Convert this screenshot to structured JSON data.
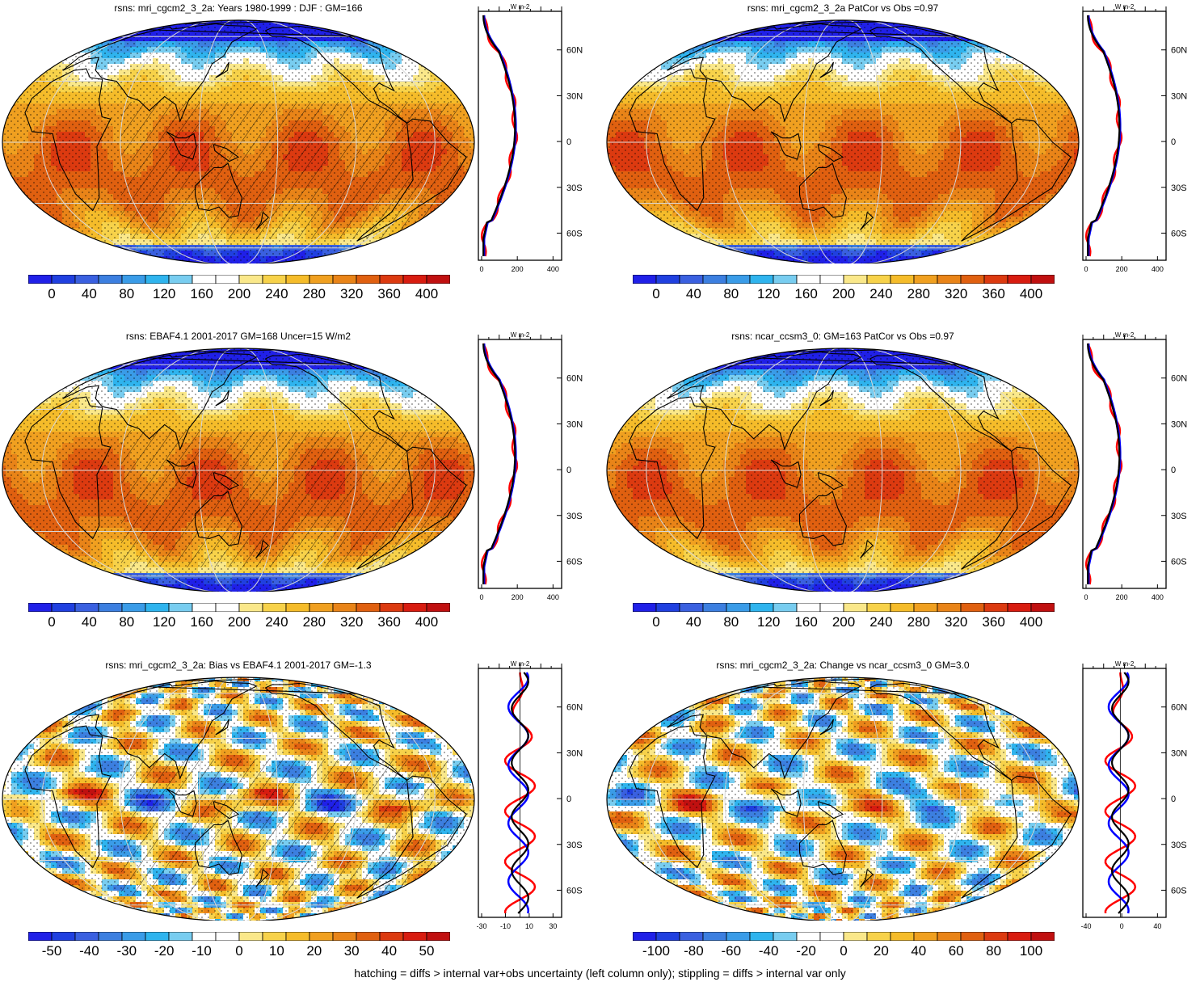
{
  "panels": [
    {
      "title": "rsns: mri_cgcm2_3_2a: Years 1980-1999 : DJF : GM=166",
      "colorbar": {
        "colors": [
          "#2020e8",
          "#2040e0",
          "#3a60e0",
          "#3c7fe0",
          "#3a9ce8",
          "#2fb4ee",
          "#78cdf0",
          "#ffffff",
          "#ffffff",
          "#fae88a",
          "#f7d24a",
          "#f5bc2a",
          "#f0a020",
          "#e98418",
          "#e06010",
          "#dc3a10",
          "#d81c10",
          "#c01010"
        ],
        "labels": [
          "0",
          "40",
          "80",
          "120",
          "160",
          "200",
          "240",
          "280",
          "320",
          "360",
          "400"
        ]
      },
      "profile": {
        "unit": "W m-2",
        "xticks": [
          "0",
          "200",
          "400"
        ],
        "yticks": [
          "60N",
          "30N",
          "0",
          "30S",
          "60S"
        ]
      }
    },
    {
      "title": "rsns: mri_cgcm2_3_2a PatCor vs Obs =0.97",
      "colorbar": {
        "colors": [
          "#2020e8",
          "#2040e0",
          "#3a60e0",
          "#3c7fe0",
          "#3a9ce8",
          "#2fb4ee",
          "#78cdf0",
          "#ffffff",
          "#ffffff",
          "#fae88a",
          "#f7d24a",
          "#f5bc2a",
          "#f0a020",
          "#e98418",
          "#e06010",
          "#dc3a10",
          "#d81c10",
          "#c01010"
        ],
        "labels": [
          "0",
          "40",
          "80",
          "120",
          "160",
          "200",
          "240",
          "280",
          "320",
          "360",
          "400"
        ]
      },
      "profile": {
        "unit": "W m-2",
        "xticks": [
          "0",
          "200",
          "400"
        ],
        "yticks": [
          "60N",
          "30N",
          "0",
          "30S",
          "60S"
        ]
      }
    },
    {
      "title": "rsns: EBAF4.1 2001-2017 GM=168 Uncer=15 W/m2",
      "colorbar": {
        "colors": [
          "#2020e8",
          "#2040e0",
          "#3a60e0",
          "#3c7fe0",
          "#3a9ce8",
          "#2fb4ee",
          "#78cdf0",
          "#ffffff",
          "#ffffff",
          "#fae88a",
          "#f7d24a",
          "#f5bc2a",
          "#f0a020",
          "#e98418",
          "#e06010",
          "#dc3a10",
          "#d81c10",
          "#c01010"
        ],
        "labels": [
          "0",
          "40",
          "80",
          "120",
          "160",
          "200",
          "240",
          "280",
          "320",
          "360",
          "400"
        ]
      },
      "profile": {
        "unit": "W m-2",
        "xticks": [
          "0",
          "200",
          "400"
        ],
        "yticks": [
          "60N",
          "30N",
          "0",
          "30S",
          "60S"
        ]
      }
    },
    {
      "title": "rsns: ncar_ccsm3_0: GM=163 PatCor vs Obs =0.97",
      "colorbar": {
        "colors": [
          "#2020e8",
          "#2040e0",
          "#3a60e0",
          "#3c7fe0",
          "#3a9ce8",
          "#2fb4ee",
          "#78cdf0",
          "#ffffff",
          "#ffffff",
          "#fae88a",
          "#f7d24a",
          "#f5bc2a",
          "#f0a020",
          "#e98418",
          "#e06010",
          "#dc3a10",
          "#d81c10",
          "#c01010"
        ],
        "labels": [
          "0",
          "40",
          "80",
          "120",
          "160",
          "200",
          "240",
          "280",
          "320",
          "360",
          "400"
        ]
      },
      "profile": {
        "unit": "W m-2",
        "xticks": [
          "0",
          "200",
          "400"
        ],
        "yticks": [
          "60N",
          "30N",
          "0",
          "30S",
          "60S"
        ]
      }
    },
    {
      "title": "rsns: mri_cgcm2_3_2a: Bias vs EBAF4.1 2001-2017 GM=-1.3",
      "colorbar": {
        "colors": [
          "#2020e8",
          "#2040e0",
          "#3a60e0",
          "#3c7fe0",
          "#3a9ce8",
          "#2fb4ee",
          "#78cdf0",
          "#ffffff",
          "#ffffff",
          "#fae88a",
          "#f7d24a",
          "#f5bc2a",
          "#f0a020",
          "#e98418",
          "#e06010",
          "#dc3a10",
          "#d81c10",
          "#c01010"
        ],
        "labels": [
          "-50",
          "-40",
          "-30",
          "-20",
          "-10",
          "0",
          "10",
          "20",
          "30",
          "40",
          "50"
        ]
      },
      "profile": {
        "unit": "W m-2",
        "xticks": [
          "-30",
          "-10",
          "10",
          "30"
        ],
        "yticks": [
          "60N",
          "30N",
          "0",
          "30S",
          "60S"
        ]
      }
    },
    {
      "title": "rsns: mri_cgcm2_3_2a: Change vs ncar_ccsm3_0 GM=3.0",
      "colorbar": {
        "colors": [
          "#2020e8",
          "#2040e0",
          "#3a60e0",
          "#3c7fe0",
          "#3a9ce8",
          "#2fb4ee",
          "#78cdf0",
          "#ffffff",
          "#ffffff",
          "#fae88a",
          "#f7d24a",
          "#f5bc2a",
          "#f0a020",
          "#e98418",
          "#e06010",
          "#dc3a10",
          "#d81c10",
          "#c01010"
        ],
        "labels": [
          "-100",
          "-80",
          "-60",
          "-40",
          "-20",
          "0",
          "20",
          "40",
          "60",
          "80",
          "100"
        ]
      },
      "profile": {
        "unit": "W m-2",
        "xticks": [
          "-40",
          "0",
          "40"
        ],
        "yticks": [
          "60N",
          "30N",
          "0",
          "30S",
          "60S"
        ]
      }
    }
  ],
  "footer": "hatching = diffs > internal var+obs uncertainty (left column only); stippling = diffs > internal var only",
  "colors": {
    "land_outline": "#000000",
    "graticule": "#d8d8d8",
    "profile_model": "#000000",
    "profile_obs": "#ff0000",
    "profile_alt": "#0000ff"
  }
}
